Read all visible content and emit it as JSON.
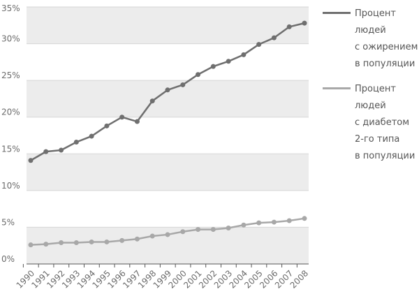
{
  "chart_data": {
    "type": "line",
    "categories": [
      "1990",
      "1991",
      "1992",
      "1993",
      "1994",
      "1995",
      "1996",
      "1997",
      "1998",
      "1999",
      "2000",
      "2001",
      "2002",
      "2003",
      "2004",
      "2005",
      "2006",
      "2007",
      "2008"
    ],
    "series": [
      {
        "name": "Процент\nлюдей\nс ожирением\nв популяции",
        "color": "#6f6f6f",
        "values": [
          14.1,
          15.3,
          15.5,
          16.6,
          17.4,
          18.8,
          20.0,
          19.4,
          22.2,
          23.7,
          24.4,
          25.8,
          26.9,
          27.6,
          28.5,
          29.9,
          30.8,
          32.3,
          32.8
        ]
      },
      {
        "name": "Процент\nлюдей\nс диабетом\n2-го типа\nв популяции",
        "color": "#a8a8a8",
        "values": [
          2.6,
          2.7,
          2.9,
          2.9,
          3.0,
          3.0,
          3.2,
          3.4,
          3.8,
          4.0,
          4.4,
          4.7,
          4.7,
          4.9,
          5.3,
          5.6,
          5.7,
          5.9,
          6.2
        ]
      }
    ],
    "ylim": [
      0,
      35
    ],
    "yticks": [
      {
        "value": 0,
        "label": "0%"
      },
      {
        "value": 5,
        "label": "5%"
      },
      {
        "value": 10,
        "label": "10%"
      },
      {
        "value": 15,
        "label": "15%"
      },
      {
        "value": 20,
        "label": "20%"
      },
      {
        "value": 25,
        "label": "25%"
      },
      {
        "value": 30,
        "label": "30%"
      },
      {
        "value": 35,
        "label": "35%"
      }
    ],
    "grid": true
  }
}
